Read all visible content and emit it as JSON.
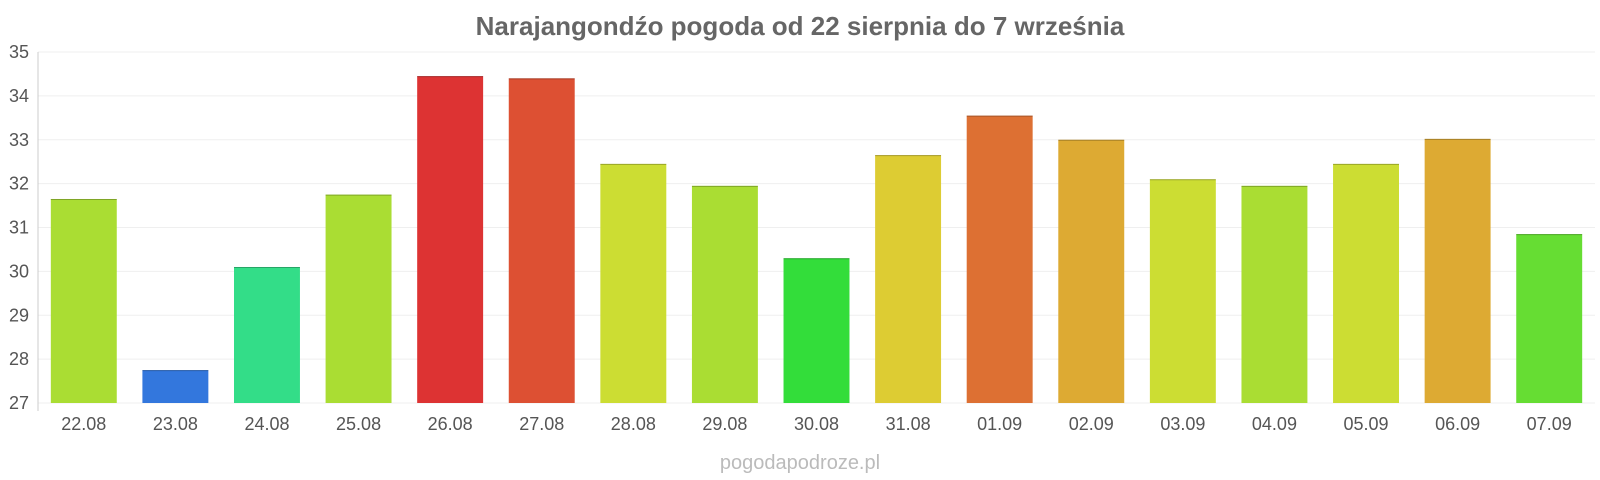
{
  "chart_data": {
    "type": "bar",
    "title": "Narajangondźo pogoda od 22 sierpnia do 7 września",
    "xlabel": "",
    "ylabel": "",
    "ylim": [
      27,
      35
    ],
    "y_ticks": [
      "27",
      "28",
      "29",
      "30",
      "31",
      "32",
      "33",
      "34",
      "35"
    ],
    "grid": true,
    "categories": [
      "22.08",
      "23.08",
      "24.08",
      "25.08",
      "26.08",
      "27.08",
      "28.08",
      "29.08",
      "30.08",
      "31.08",
      "01.09",
      "02.09",
      "03.09",
      "04.09",
      "05.09",
      "06.09",
      "07.09"
    ],
    "values": [
      31.65,
      27.75,
      30.1,
      31.75,
      34.45,
      34.4,
      32.45,
      31.95,
      30.3,
      32.65,
      33.55,
      33.0,
      32.1,
      31.95,
      32.45,
      33.02,
      30.85
    ],
    "colors": [
      "#aadd33",
      "#3377dd",
      "#33dd88",
      "#aadd33",
      "#dd3333",
      "#dd5033",
      "#ccdd33",
      "#aadd33",
      "#33dd3a",
      "#ddcc33",
      "#dd7033",
      "#ddaa33",
      "#ccdd33",
      "#aadd33",
      "#ccdd33",
      "#ddaa33",
      "#66dd33"
    ]
  },
  "credit": "pogodapodroze.pl"
}
